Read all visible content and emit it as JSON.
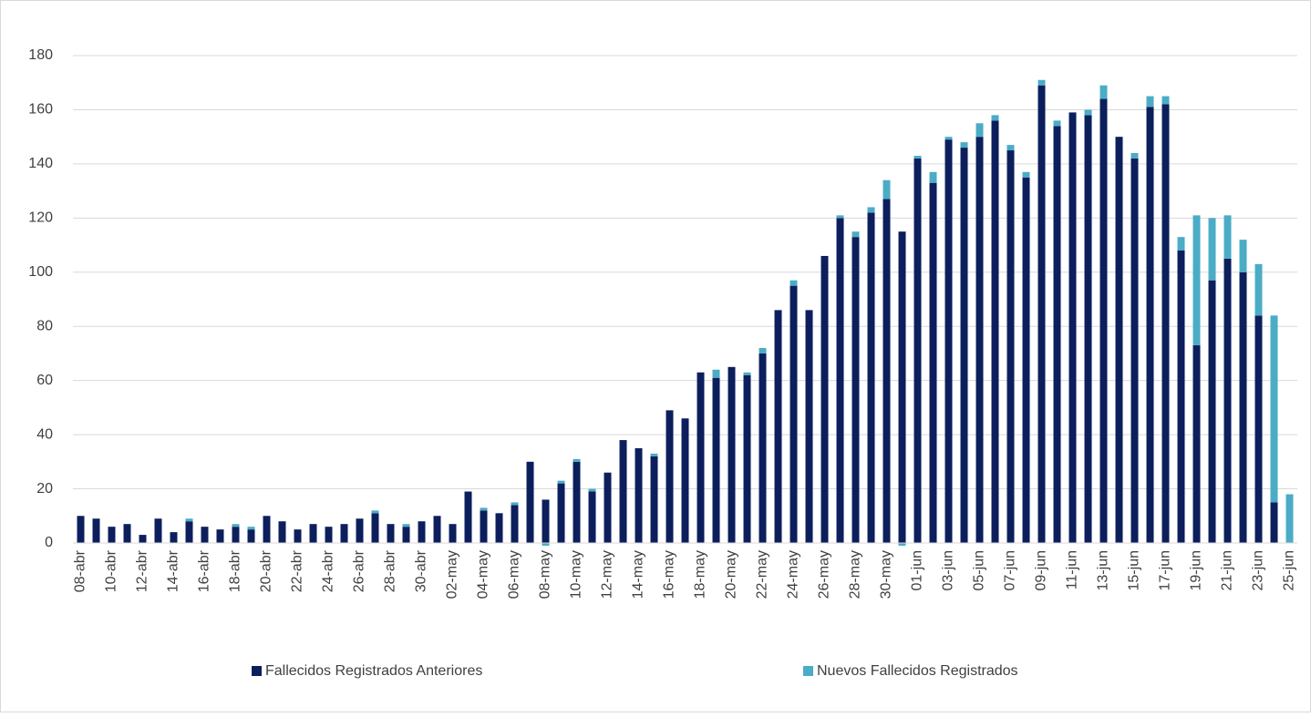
{
  "chart_data": {
    "type": "stacked_bar",
    "categories": [
      "08-abr",
      null,
      "10-abr",
      null,
      "12-abr",
      null,
      "14-abr",
      null,
      "16-abr",
      null,
      "18-abr",
      null,
      "20-abr",
      null,
      "22-abr",
      null,
      "24-abr",
      null,
      "26-abr",
      null,
      "28-abr",
      null,
      "30-abr",
      null,
      "02-may",
      null,
      "04-may",
      null,
      "06-may",
      null,
      "08-may",
      null,
      "10-may",
      null,
      "12-may",
      null,
      "14-may",
      null,
      "16-may",
      null,
      "18-may",
      null,
      "20-may",
      null,
      "22-may",
      null,
      "24-may",
      null,
      "26-may",
      null,
      "28-may",
      null,
      "30-may",
      null,
      "01-jun",
      null,
      "03-jun",
      null,
      "05-jun",
      null,
      "07-jun",
      null,
      "09-jun",
      null,
      "11-jun",
      null,
      "13-jun",
      null,
      "15-jun",
      null,
      "17-jun",
      null,
      "19-jun",
      null,
      "21-jun",
      null,
      "23-jun",
      null,
      "25-jun"
    ],
    "series": [
      {
        "name": "Fallecidos Registrados Anteriores",
        "color": "#0c1f5c",
        "values": [
          10,
          9,
          6,
          7,
          3,
          9,
          4,
          8,
          6,
          5,
          6,
          5,
          10,
          8,
          5,
          7,
          6,
          7,
          9,
          11,
          7,
          6,
          8,
          10,
          7,
          19,
          12,
          11,
          14,
          30,
          16,
          22,
          30,
          19,
          26,
          38,
          35,
          32,
          49,
          46,
          63,
          61,
          65,
          62,
          70,
          86,
          95,
          86,
          106,
          120,
          113,
          122,
          127,
          115,
          142,
          133,
          149,
          146,
          150,
          156,
          145,
          135,
          169,
          154,
          159,
          158,
          164,
          150,
          142,
          161,
          162,
          108,
          73,
          97,
          105,
          100,
          84,
          15,
          0
        ]
      },
      {
        "name": "Nuevos Fallecidos Registrados",
        "color": "#4bacc6",
        "values": [
          0,
          0,
          0,
          0,
          0,
          0,
          0,
          1,
          0,
          0,
          1,
          1,
          0,
          0,
          0,
          0,
          0,
          0,
          0,
          1,
          0,
          1,
          0,
          0,
          0,
          0,
          1,
          0,
          1,
          0,
          -1,
          1,
          1,
          1,
          0,
          0,
          0,
          1,
          0,
          0,
          0,
          3,
          0,
          1,
          2,
          0,
          2,
          0,
          0,
          1,
          2,
          2,
          7,
          -1,
          1,
          4,
          1,
          2,
          5,
          2,
          2,
          2,
          2,
          2,
          0,
          2,
          5,
          0,
          2,
          4,
          3,
          5,
          48,
          23,
          16,
          12,
          19,
          69,
          18
        ]
      }
    ],
    "ylim": [
      0,
      180
    ],
    "yticks": [
      0,
      20,
      40,
      60,
      80,
      100,
      120,
      140,
      160,
      180
    ],
    "grid": true
  }
}
